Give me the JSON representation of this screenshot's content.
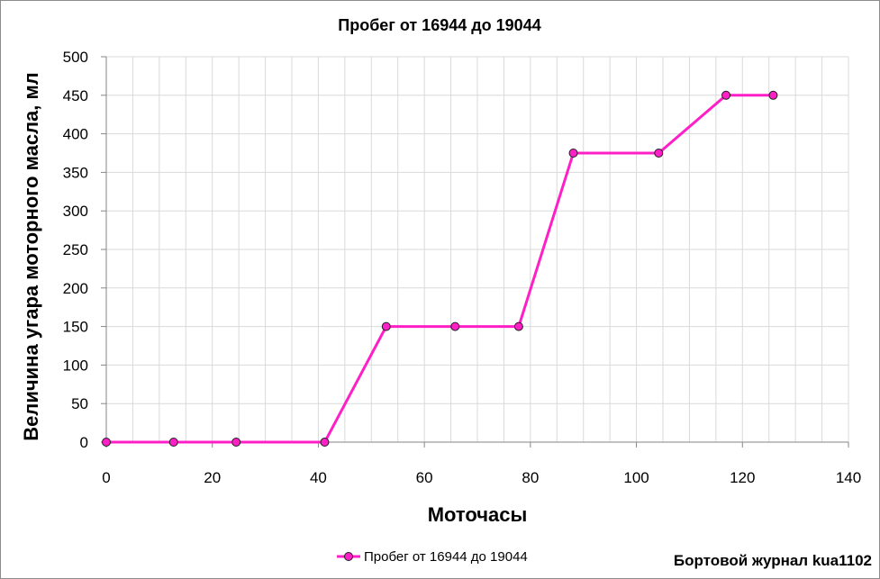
{
  "chart_data": {
    "type": "scatter",
    "title": "Пробег от 16944 до 19044",
    "xlabel": "Моточасы",
    "ylabel": "Величина угара моторного масла, мл",
    "xlim": [
      0,
      140
    ],
    "ylim": [
      0,
      500
    ],
    "x_ticks": [
      0,
      20,
      40,
      60,
      80,
      100,
      120,
      140
    ],
    "y_ticks": [
      0,
      50,
      100,
      150,
      200,
      250,
      300,
      350,
      400,
      450,
      500
    ],
    "grid": true,
    "legend_position": "bottom",
    "series": [
      {
        "name": "Пробег от 16944 до 19044",
        "color": "#ff1fc7",
        "marker_color": "#ff1fc7",
        "x": [
          0,
          12.7,
          24.5,
          41.2,
          52.8,
          65.8,
          77.8,
          88.1,
          104.2,
          116.9,
          125.8
        ],
        "y": [
          0,
          0,
          0,
          0,
          150,
          150,
          150,
          375,
          375,
          450,
          450
        ]
      }
    ]
  },
  "footer_text": "Бортовой журнал kua1102"
}
